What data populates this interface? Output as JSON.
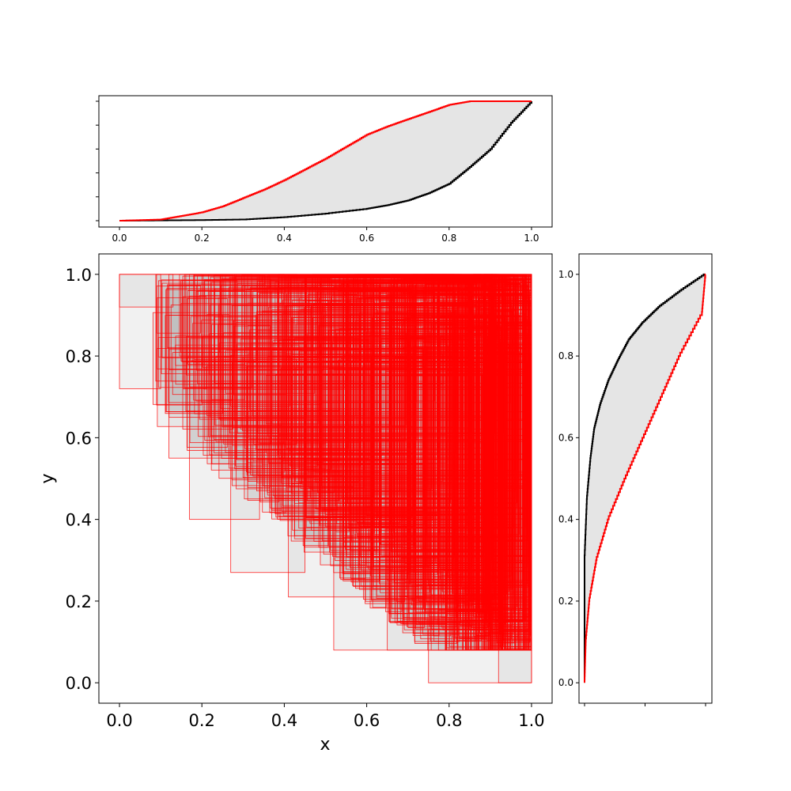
{
  "chart_data": [
    {
      "panel": "main",
      "type": "box-plot (interval rectangles)",
      "xlabel": "x",
      "ylabel": "y",
      "xlim": [
        -0.05,
        1.05
      ],
      "ylim": [
        -0.05,
        1.05
      ],
      "x_ticks": [
        "0.0",
        "0.2",
        "0.4",
        "0.6",
        "0.8",
        "1.0"
      ],
      "y_ticks": [
        "0.0",
        "0.2",
        "0.4",
        "0.6",
        "0.8",
        "1.0"
      ],
      "grid": false,
      "box_edge_color": "#ff0000",
      "box_fill_color": "#d9d9d9",
      "box_count_estimate": 1000,
      "sample_boxes": [
        {
          "x0": 0.0,
          "x1": 0.1,
          "y0": 0.72,
          "y1": 1.0
        },
        {
          "x0": 0.0,
          "x1": 0.13,
          "y0": 0.92,
          "y1": 1.0
        },
        {
          "x0": 0.09,
          "x1": 0.2,
          "y0": 0.68,
          "y1": 1.0
        },
        {
          "x0": 0.12,
          "x1": 0.4,
          "y0": 0.55,
          "y1": 1.0
        },
        {
          "x0": 0.17,
          "x1": 0.34,
          "y0": 0.4,
          "y1": 1.0
        },
        {
          "x0": 0.27,
          "x1": 0.45,
          "y0": 0.27,
          "y1": 0.99
        },
        {
          "x0": 0.41,
          "x1": 0.7,
          "y0": 0.21,
          "y1": 0.98
        },
        {
          "x0": 0.52,
          "x1": 0.93,
          "y0": 0.08,
          "y1": 0.97
        },
        {
          "x0": 0.65,
          "x1": 0.98,
          "y0": 0.08,
          "y1": 0.95
        },
        {
          "x0": 0.75,
          "x1": 1.0,
          "y0": 0.0,
          "y1": 0.13
        },
        {
          "x0": 0.92,
          "x1": 1.0,
          "y0": 0.0,
          "y1": 0.3
        }
      ]
    },
    {
      "panel": "top-marginal",
      "type": "line (empirical CDF, filled between)",
      "xlim": [
        -0.05,
        1.05
      ],
      "x_ticks": [
        "0.0",
        "0.2",
        "0.4",
        "0.6",
        "0.8",
        "1.0"
      ],
      "y_ticks": [
        "",
        "",
        "",
        "",
        "",
        ""
      ],
      "fill_color": "#e5e5e5",
      "series": [
        {
          "color": "#ff0000",
          "x": [
            0.0,
            0.1,
            0.15,
            0.2,
            0.25,
            0.3,
            0.35,
            0.4,
            0.45,
            0.5,
            0.55,
            0.6,
            0.65,
            0.7,
            0.75,
            0.8,
            0.85,
            0.9,
            1.0
          ],
          "y": [
            0.0,
            0.01,
            0.04,
            0.07,
            0.12,
            0.19,
            0.26,
            0.34,
            0.43,
            0.52,
            0.62,
            0.72,
            0.79,
            0.85,
            0.91,
            0.97,
            1.0,
            1.0,
            1.0
          ]
        },
        {
          "color": "#000000",
          "x": [
            0.0,
            0.2,
            0.3,
            0.4,
            0.5,
            0.6,
            0.65,
            0.7,
            0.75,
            0.8,
            0.85,
            0.9,
            0.95,
            1.0
          ],
          "y": [
            0.0,
            0.005,
            0.01,
            0.03,
            0.06,
            0.1,
            0.13,
            0.17,
            0.23,
            0.31,
            0.45,
            0.6,
            0.82,
            1.0
          ]
        }
      ]
    },
    {
      "panel": "right-marginal",
      "type": "line (empirical CDF, filled between)",
      "ylim": [
        -0.05,
        1.05
      ],
      "y_ticks": [
        "0.0",
        "0.2",
        "0.4",
        "0.6",
        "0.8",
        "1.0"
      ],
      "x_ticks": [
        "",
        "",
        ""
      ],
      "fill_color": "#e5e5e5",
      "series": [
        {
          "color": "#000000",
          "y": [
            0.0,
            0.3,
            0.45,
            0.55,
            0.62,
            0.68,
            0.74,
            0.79,
            0.84,
            0.88,
            0.92,
            0.96,
            1.0
          ],
          "cdf": [
            0.0,
            0.0,
            0.02,
            0.05,
            0.08,
            0.13,
            0.2,
            0.28,
            0.37,
            0.48,
            0.62,
            0.8,
            1.0
          ]
        },
        {
          "color": "#ff0000",
          "y": [
            0.0,
            0.1,
            0.2,
            0.3,
            0.4,
            0.5,
            0.6,
            0.7,
            0.8,
            0.9,
            1.0
          ],
          "cdf": [
            0.0,
            0.01,
            0.04,
            0.1,
            0.2,
            0.34,
            0.49,
            0.64,
            0.79,
            0.97,
            1.0
          ]
        }
      ]
    }
  ]
}
